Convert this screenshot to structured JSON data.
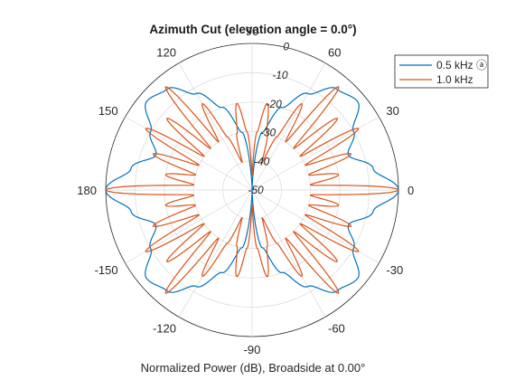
{
  "chart_data": {
    "type": "polar-line",
    "title": "Azimuth Cut (elevation angle = 0.0°)",
    "xlabel": "Normalized Power (dB), Broadside at 0.00°",
    "angle_ticks": [
      0,
      30,
      60,
      90,
      120,
      150,
      180,
      -150,
      -120,
      -90,
      -60,
      -30
    ],
    "radial_ticks": [
      0,
      -10,
      -20,
      -30,
      -40,
      -50
    ],
    "radial_range_db": [
      -50,
      0
    ],
    "grid": true,
    "legend_position": "top-right",
    "series": [
      {
        "name": "0.5 kHz ⓐ",
        "color": "#0072BD",
        "pattern_samples": {
          "azimuth_deg": [
            0,
            10,
            20,
            30,
            40,
            50,
            60,
            70,
            80,
            90,
            100,
            110,
            120,
            130,
            140,
            150,
            160,
            170,
            180
          ],
          "power_db": [
            0,
            -8,
            -15,
            -10,
            -3,
            -5,
            -12,
            -20,
            -30,
            -50,
            -30,
            -20,
            -12,
            -5,
            -3,
            -10,
            -15,
            -8,
            0
          ]
        }
      },
      {
        "name": "1.0 kHz",
        "color": "#D95319",
        "pattern_samples": {
          "azimuth_deg": [
            0,
            5,
            10,
            15,
            20,
            25,
            30,
            35,
            40,
            45,
            50,
            55,
            60,
            65,
            70,
            75,
            80,
            85,
            90
          ],
          "power_db": [
            0,
            -30,
            -20,
            -30,
            -14,
            -30,
            -8,
            -30,
            -12,
            -30,
            -4,
            -30,
            -16,
            -30,
            -40,
            -30,
            -20,
            -30,
            -45
          ]
        }
      }
    ]
  }
}
